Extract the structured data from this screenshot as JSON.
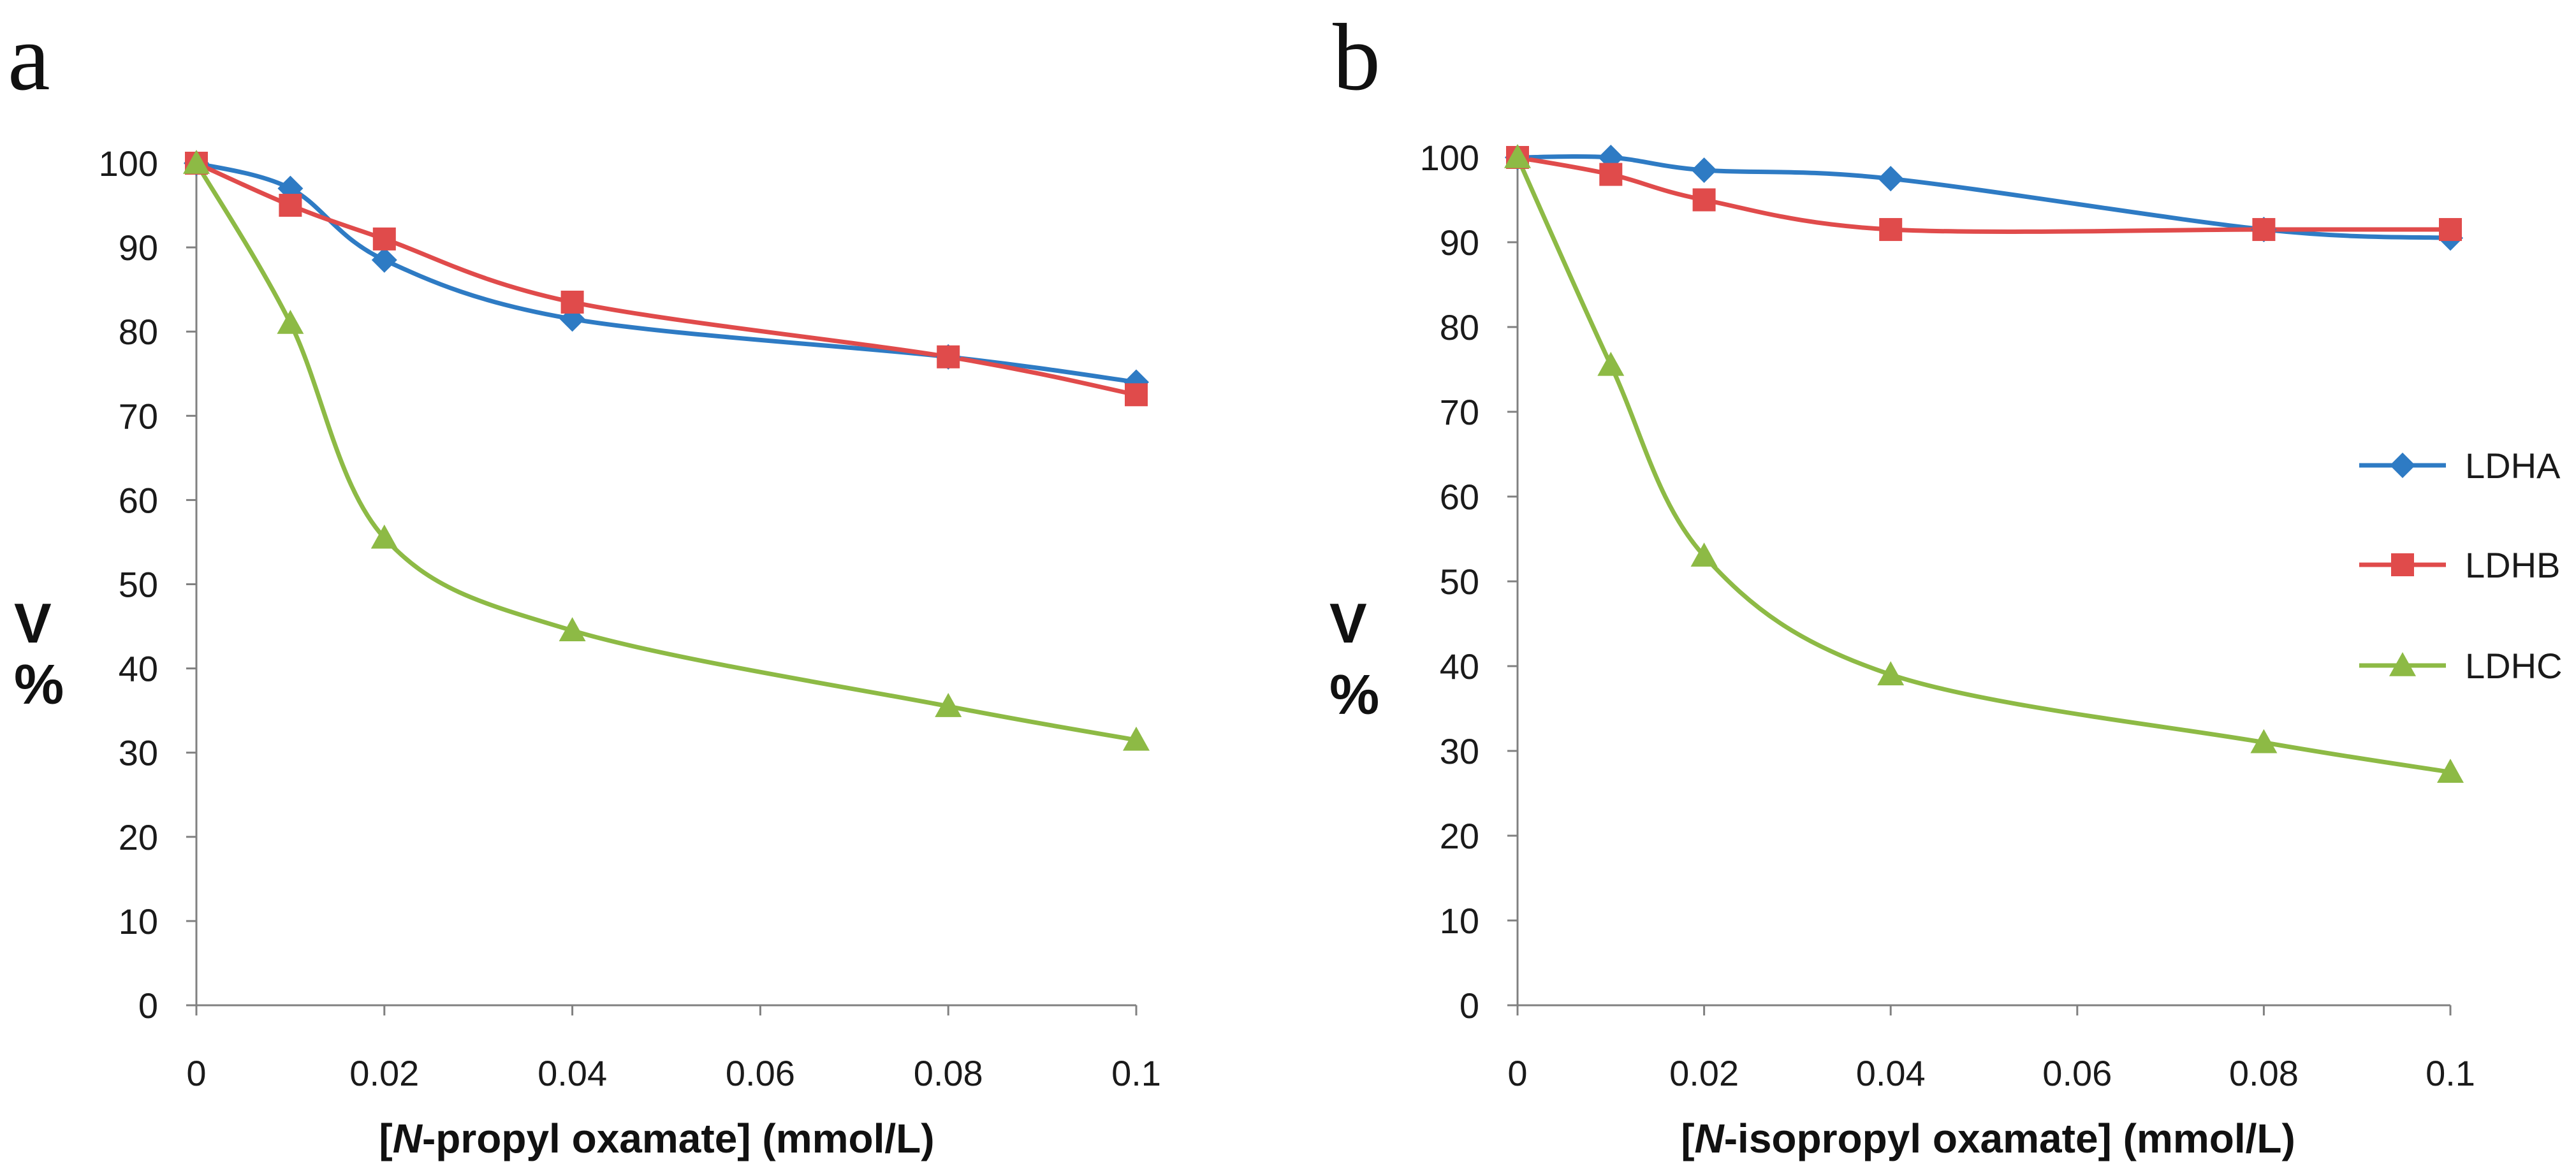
{
  "chart_data": [
    {
      "type": "line",
      "panel_letter": "a",
      "xlabel_prefix": "[",
      "xlabel_italic": "N",
      "xlabel_suffix": "-propyl oxamate] (mmol/L)",
      "ylabel_line1": "V",
      "ylabel_line2": "%",
      "x": [
        0,
        0.01,
        0.02,
        0.04,
        0.08,
        0.1
      ],
      "x_ticks": [
        0,
        0.02,
        0.04,
        0.06,
        0.08,
        0.1
      ],
      "x_tick_labels": [
        "0",
        "0.02",
        "0.04",
        "0.06",
        "0.08",
        "0.1"
      ],
      "xlim": [
        0,
        0.1
      ],
      "y_ticks": [
        0,
        10,
        20,
        30,
        40,
        50,
        60,
        70,
        80,
        90,
        100
      ],
      "y_tick_labels": [
        "0",
        "10",
        "20",
        "30",
        "40",
        "50",
        "60",
        "70",
        "80",
        "90",
        "100"
      ],
      "ylim": [
        0,
        100
      ],
      "series": [
        {
          "name": "LDHA",
          "color": "#2E7BC4",
          "marker": "diamond",
          "values": [
            100,
            97,
            88.5,
            81.5,
            77,
            74
          ]
        },
        {
          "name": "LDHB",
          "color": "#E04B4B",
          "marker": "square",
          "values": [
            100,
            95,
            91,
            83.5,
            77,
            72.5
          ]
        },
        {
          "name": "LDHC",
          "color": "#8DBA45",
          "marker": "triangle",
          "values": [
            100,
            81,
            55.5,
            44.5,
            35.5,
            31.5
          ]
        }
      ],
      "legend": false
    },
    {
      "type": "line",
      "panel_letter": "b",
      "xlabel_prefix": "[",
      "xlabel_italic": "N",
      "xlabel_suffix": "-isopropyl oxamate] (mmol/L)",
      "ylabel_line1": "V",
      "ylabel_line2": "%",
      "x": [
        0,
        0.01,
        0.02,
        0.04,
        0.08,
        0.1
      ],
      "x_ticks": [
        0,
        0.02,
        0.04,
        0.06,
        0.08,
        0.1
      ],
      "x_tick_labels": [
        "0",
        "0.02",
        "0.04",
        "0.06",
        "0.08",
        "0.1"
      ],
      "xlim": [
        0,
        0.1
      ],
      "y_ticks": [
        0,
        10,
        20,
        30,
        40,
        50,
        60,
        70,
        80,
        90,
        100
      ],
      "y_tick_labels": [
        "0",
        "10",
        "20",
        "30",
        "40",
        "50",
        "60",
        "70",
        "80",
        "90",
        "100"
      ],
      "ylim": [
        0,
        100
      ],
      "series": [
        {
          "name": "LDHA",
          "color": "#2E7BC4",
          "marker": "diamond",
          "values": [
            100,
            100,
            98.5,
            97.5,
            91.5,
            90.5
          ]
        },
        {
          "name": "LDHB",
          "color": "#E04B4B",
          "marker": "square",
          "values": [
            100,
            98,
            95,
            91.5,
            91.5,
            91.5
          ]
        },
        {
          "name": "LDHC",
          "color": "#8DBA45",
          "marker": "triangle",
          "values": [
            100,
            75.5,
            53,
            39,
            31,
            27.5
          ]
        }
      ],
      "legend": true,
      "legend_position": "right-middle"
    }
  ]
}
